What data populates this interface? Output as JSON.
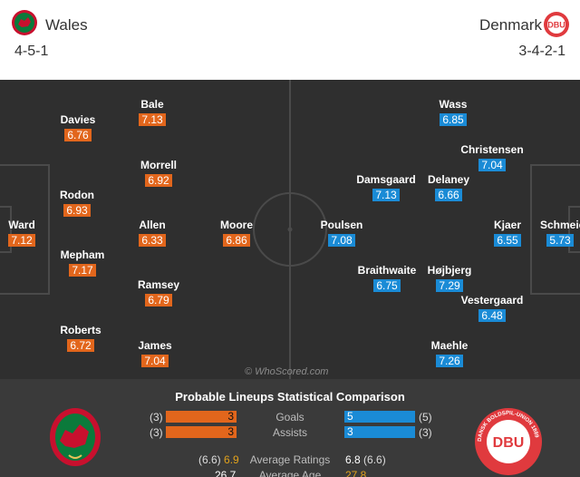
{
  "home": {
    "name": "Wales",
    "formation": "4-5-1",
    "players": [
      {
        "name": "Ward",
        "rating": "7.12"
      },
      {
        "name": "Davies",
        "rating": "6.76"
      },
      {
        "name": "Rodon",
        "rating": "6.93"
      },
      {
        "name": "Mepham",
        "rating": "7.17"
      },
      {
        "name": "Roberts",
        "rating": "6.72"
      },
      {
        "name": "Bale",
        "rating": "7.13"
      },
      {
        "name": "Morrell",
        "rating": "6.92"
      },
      {
        "name": "Allen",
        "rating": "6.33"
      },
      {
        "name": "Ramsey",
        "rating": "6.79"
      },
      {
        "name": "James",
        "rating": "7.04"
      },
      {
        "name": "Moore",
        "rating": "6.86"
      }
    ]
  },
  "away": {
    "name": "Denmark",
    "formation": "3-4-2-1",
    "crest_text": "DBU",
    "players": [
      {
        "name": "Schmeichel",
        "rating": "5.73"
      },
      {
        "name": "Kjaer",
        "rating": "6.55"
      },
      {
        "name": "Christensen",
        "rating": "7.04"
      },
      {
        "name": "Vestergaard",
        "rating": "6.48"
      },
      {
        "name": "Wass",
        "rating": "6.85"
      },
      {
        "name": "Delaney",
        "rating": "6.66"
      },
      {
        "name": "Højbjerg",
        "rating": "7.29"
      },
      {
        "name": "Maehle",
        "rating": "7.26"
      },
      {
        "name": "Damsgaard",
        "rating": "7.13"
      },
      {
        "name": "Braithwaite",
        "rating": "6.75"
      },
      {
        "name": "Poulsen",
        "rating": "7.08"
      }
    ]
  },
  "watermark": "© WhoScored.com",
  "comparison": {
    "title": "Probable Lineups Statistical Comparison",
    "goals": {
      "label": "Goals",
      "home_paren": "(3)",
      "home": "3",
      "away": "5",
      "away_paren": "(5)"
    },
    "assists": {
      "label": "Assists",
      "home_paren": "(3)",
      "home": "3",
      "away": "3",
      "away_paren": "(3)"
    },
    "avg_ratings": {
      "label": "Average Ratings",
      "home_paren": "(6.6)",
      "home": "6.9",
      "away": "6.8",
      "away_paren": "(6.6)"
    },
    "avg_age": {
      "label": "Average Age",
      "home": "26.7",
      "away": "27.8"
    },
    "away_crest_text": "DBU",
    "away_crest_ring": "DANSK BOLDSPIL-UNION 1889"
  },
  "colors": {
    "home_accent": "#e2661c",
    "away_accent": "#1a8bd6",
    "pitch": "#2f2f2f",
    "panel": "#3a3a3a"
  }
}
